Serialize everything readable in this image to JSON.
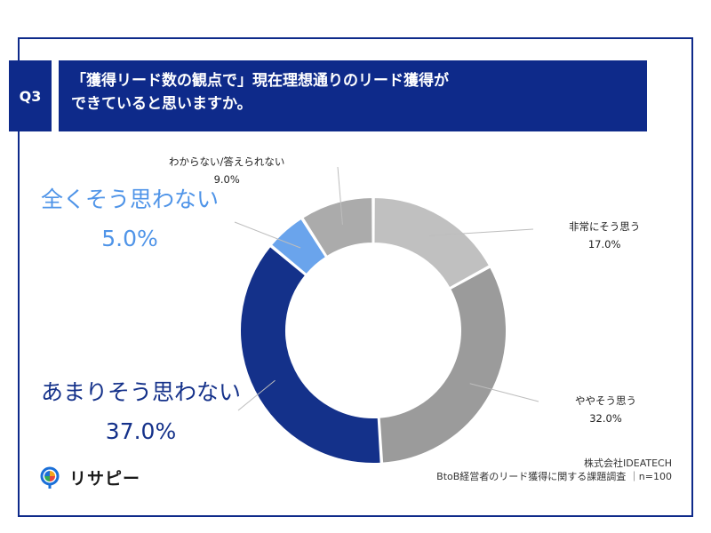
{
  "header": {
    "q_number": "Q3",
    "question_line1": "「獲得リード数の観点で」現在理想通りのリード獲得が",
    "question_line2": "できていると思いますか。"
  },
  "colors": {
    "frame": "#0e2a8a",
    "header_bg": "#0e2a8a",
    "slice_very": "#c0c0c0",
    "slice_somewhat": "#9b9b9b",
    "slice_not_much": "#14318a",
    "slice_not_at_all": "#6aa4ec",
    "slice_unknown": "#ababab",
    "label_not_at_all": "#4f94e8",
    "label_not_much": "#14318a"
  },
  "chart_data": {
    "type": "pie",
    "donut": true,
    "title": "「獲得リード数の観点で」現在理想通りのリード獲得ができていると思いますか。",
    "slices": [
      {
        "label": "非常にそう思う",
        "value": 17.0,
        "display": "17.0%"
      },
      {
        "label": "ややそう思う",
        "value": 32.0,
        "display": "32.0%"
      },
      {
        "label": "あまりそう思わない",
        "value": 37.0,
        "display": "37.0%"
      },
      {
        "label": "全くそう思わない",
        "value": 5.0,
        "display": "5.0%"
      },
      {
        "label": "わからない/答えられない",
        "value": 9.0,
        "display": "9.0%"
      }
    ]
  },
  "footer": {
    "company": "株式会社IDEATECH",
    "survey": "BtoB経営者のリード獲得に関する課題調査 ｜n=100"
  },
  "logo": {
    "text": "リサピー"
  }
}
